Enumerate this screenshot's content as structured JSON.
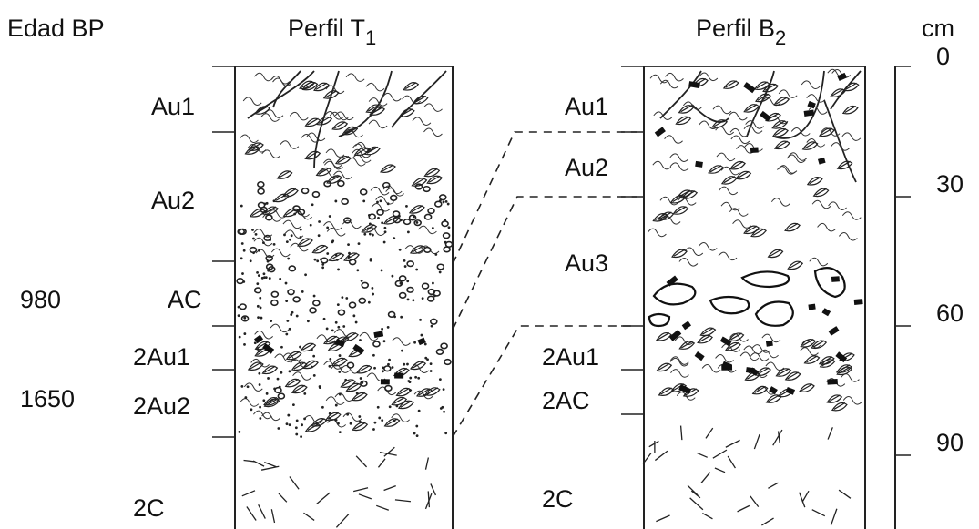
{
  "header": {
    "age_label": "Edad BP",
    "profile_t1_prefix": "Perfil T",
    "profile_t1_sub": "1",
    "profile_b2_prefix": "Perfil B",
    "profile_b2_sub": "2",
    "depth_unit": "cm"
  },
  "ages": [
    "980",
    "1650"
  ],
  "profile_t1": {
    "horizons": [
      "Au1",
      "Au2",
      "AC",
      "2Au1",
      "2Au2",
      "2C"
    ]
  },
  "profile_b2": {
    "horizons": [
      "Au1",
      "Au2",
      "Au3",
      "2Au1",
      "2AC",
      "2C"
    ]
  },
  "depth_scale": {
    "ticks": [
      "0",
      "30",
      "60",
      "90"
    ]
  }
}
